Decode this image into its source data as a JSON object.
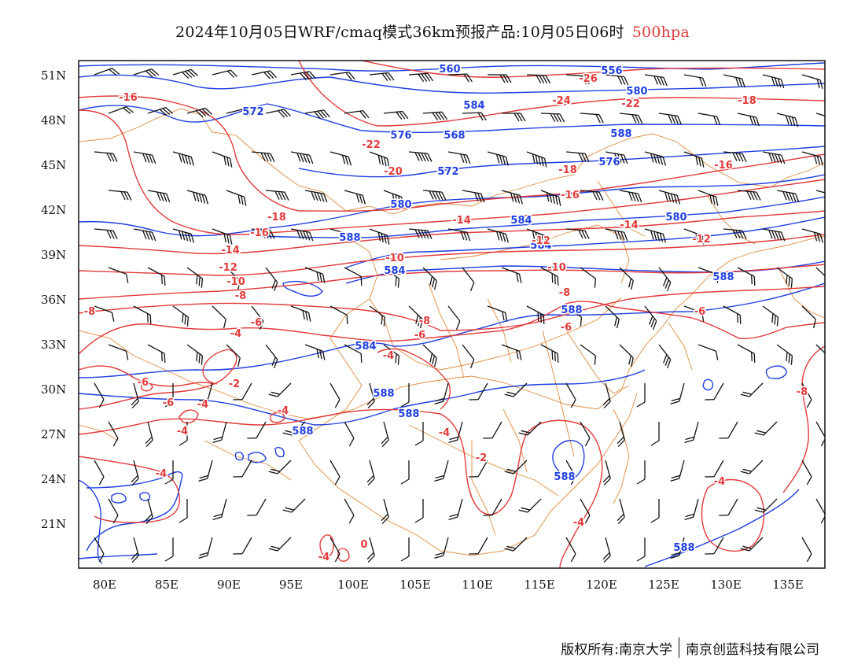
{
  "title": {
    "main": "2024年10月05日WRF/cmaq模式36km预报产品:10月05日06时",
    "level": "500hpa"
  },
  "axes": {
    "lat_labels": [
      "51N",
      "48N",
      "45N",
      "42N",
      "39N",
      "36N",
      "33N",
      "30N",
      "27N",
      "24N",
      "21N"
    ],
    "lon_labels": [
      "80E",
      "85E",
      "90E",
      "95E",
      "100E",
      "105E",
      "110E",
      "115E",
      "120E",
      "125E",
      "130E",
      "135E"
    ]
  },
  "contours": {
    "height_color": "#1f3fe0",
    "temp_color": "#e23a3a",
    "border_color": "#e08a3a",
    "height_labels": [
      "560",
      "556",
      "580",
      "584",
      "572",
      "576",
      "568",
      "588",
      "572",
      "576",
      "580",
      "584",
      "580",
      "584",
      "588",
      "584",
      "588",
      "588",
      "584",
      "588",
      "588",
      "588",
      "588",
      "588"
    ],
    "temp_labels": [
      "-16",
      "-26",
      "-24",
      "-22",
      "-18",
      "-16",
      "-22",
      "-20",
      "-18",
      "-16",
      "-18",
      "-16",
      "-14",
      "-14",
      "-12",
      "-14",
      "-12",
      "-10",
      "-10",
      "-12",
      "-10",
      "-8",
      "-8",
      "-6",
      "-8",
      "-8",
      "-6",
      "-6",
      "-6",
      "-4",
      "-6",
      "-4",
      "-2",
      "-6",
      "-4",
      "-4",
      "-4",
      "-4",
      "-2",
      "-4",
      "-4",
      "-4",
      "0",
      "-4",
      "-8"
    ]
  },
  "footer": {
    "copyright": "版权所有:南京大学",
    "company": "南京创蓝科技有限公司"
  }
}
